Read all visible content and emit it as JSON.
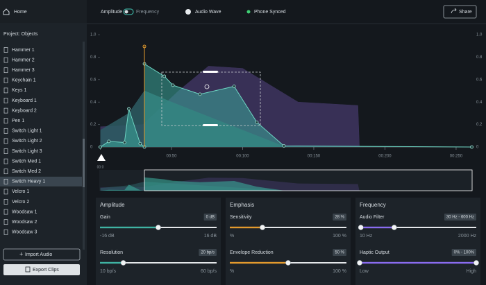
{
  "sidebar": {
    "home": "Home",
    "project": "Project: Objects",
    "items": [
      "Hammer 1",
      "Hammer 2",
      "Hammer 3",
      "Keychain 1",
      "Keys 1",
      "Keyboard 1",
      "Keyboard 2",
      "Pen 1",
      "Switch Light 1",
      "Switch Light 2",
      "Switch Light 3",
      "Switch Med 1",
      "Switch Med 2",
      "Switch Heavy 1",
      "Velcro 1",
      "Velcro 2",
      "Woodsaw 1",
      "Woodsaw 2",
      "Woodsaw 3"
    ],
    "selected_index": 13,
    "import": "Import Audio",
    "export": "Export Clips"
  },
  "toolbar": {
    "status": "Phone Synced",
    "share": "Share"
  },
  "chart_data": {
    "type": "area",
    "xlim": [
      0,
      261
    ],
    "ylim": [
      0,
      1
    ],
    "xticks": [
      {
        "value": 0,
        "label": "00:0"
      },
      {
        "value": 50,
        "label": "00:50"
      },
      {
        "value": 100,
        "label": "00:100"
      },
      {
        "value": 150,
        "label": "00:150"
      },
      {
        "value": 200,
        "label": "00:200"
      },
      {
        "value": 250,
        "label": "00:250"
      }
    ],
    "yticks": [
      0,
      0.2,
      0.4,
      0.6,
      0.8,
      {
        "value": 1,
        "label": "1.0"
      }
    ],
    "series": [
      {
        "name": "Frequency",
        "color": "#3e3560",
        "x": [
          0,
          30,
          55,
          76,
          100,
          139,
          181,
          182
        ],
        "values": [
          0.18,
          0.2,
          0.5,
          0.72,
          0.7,
          0.4,
          0.37,
          0
        ]
      },
      {
        "name": "Audio Wave",
        "color": "#2d5c63",
        "x": [
          0,
          20,
          31,
          50,
          80,
          110,
          130
        ],
        "values": [
          0.15,
          0.3,
          0.5,
          0.4,
          0.25,
          0.1,
          0
        ]
      },
      {
        "name": "Amplitude",
        "color": "#3aa89a",
        "x": [
          0,
          6,
          17,
          20,
          28,
          31,
          31,
          45,
          51,
          70,
          94,
          110,
          129,
          261
        ],
        "values": [
          0,
          0.05,
          0.04,
          0.34,
          0.03,
          0,
          0.74,
          0.63,
          0.55,
          0.47,
          0.54,
          0.22,
          0.01,
          0
        ]
      }
    ]
  },
  "panels": [
    {
      "title": "Amplitude",
      "color": "#3fb3a3",
      "sliders": [
        {
          "label": "Gain",
          "value": 0,
          "value_label": "0 dB",
          "min": -16,
          "min_label": "-16 dB",
          "max": 16,
          "max_label": "16 dB"
        },
        {
          "label": "Resolution",
          "value": 20,
          "value_label": "20 bp/s",
          "min": 10,
          "min_label": "10 bp/s",
          "max": 60,
          "max_label": "60 bp/s"
        }
      ]
    },
    {
      "title": "Emphasis",
      "color": "#e39a2d",
      "sliders": [
        {
          "label": "Sensitivity",
          "value": 28,
          "value_label": "28 %",
          "min": 0,
          "min_label": "%",
          "max": 100,
          "max_label": "100 %"
        },
        {
          "label": "Envelope Reduction",
          "value": 50,
          "value_label": "50 %",
          "min": 0,
          "min_label": "%",
          "max": 100,
          "max_label": "100 %"
        }
      ]
    },
    {
      "title": "Frequency",
      "color": "#8a6cf0",
      "sliders": [
        {
          "label": "Audio Filter",
          "value": [
            30,
            600
          ],
          "value_label": "30 Hz - 600 Hz",
          "min": 10,
          "min_label": "10 Hz",
          "max": 2000,
          "max_label": "2000 Hz"
        },
        {
          "label": "Haptic Output",
          "value": [
            0,
            100
          ],
          "value_label": "0% - 100%",
          "min": 0,
          "min_label": "Low",
          "max": 100,
          "max_label": "High"
        }
      ]
    }
  ]
}
